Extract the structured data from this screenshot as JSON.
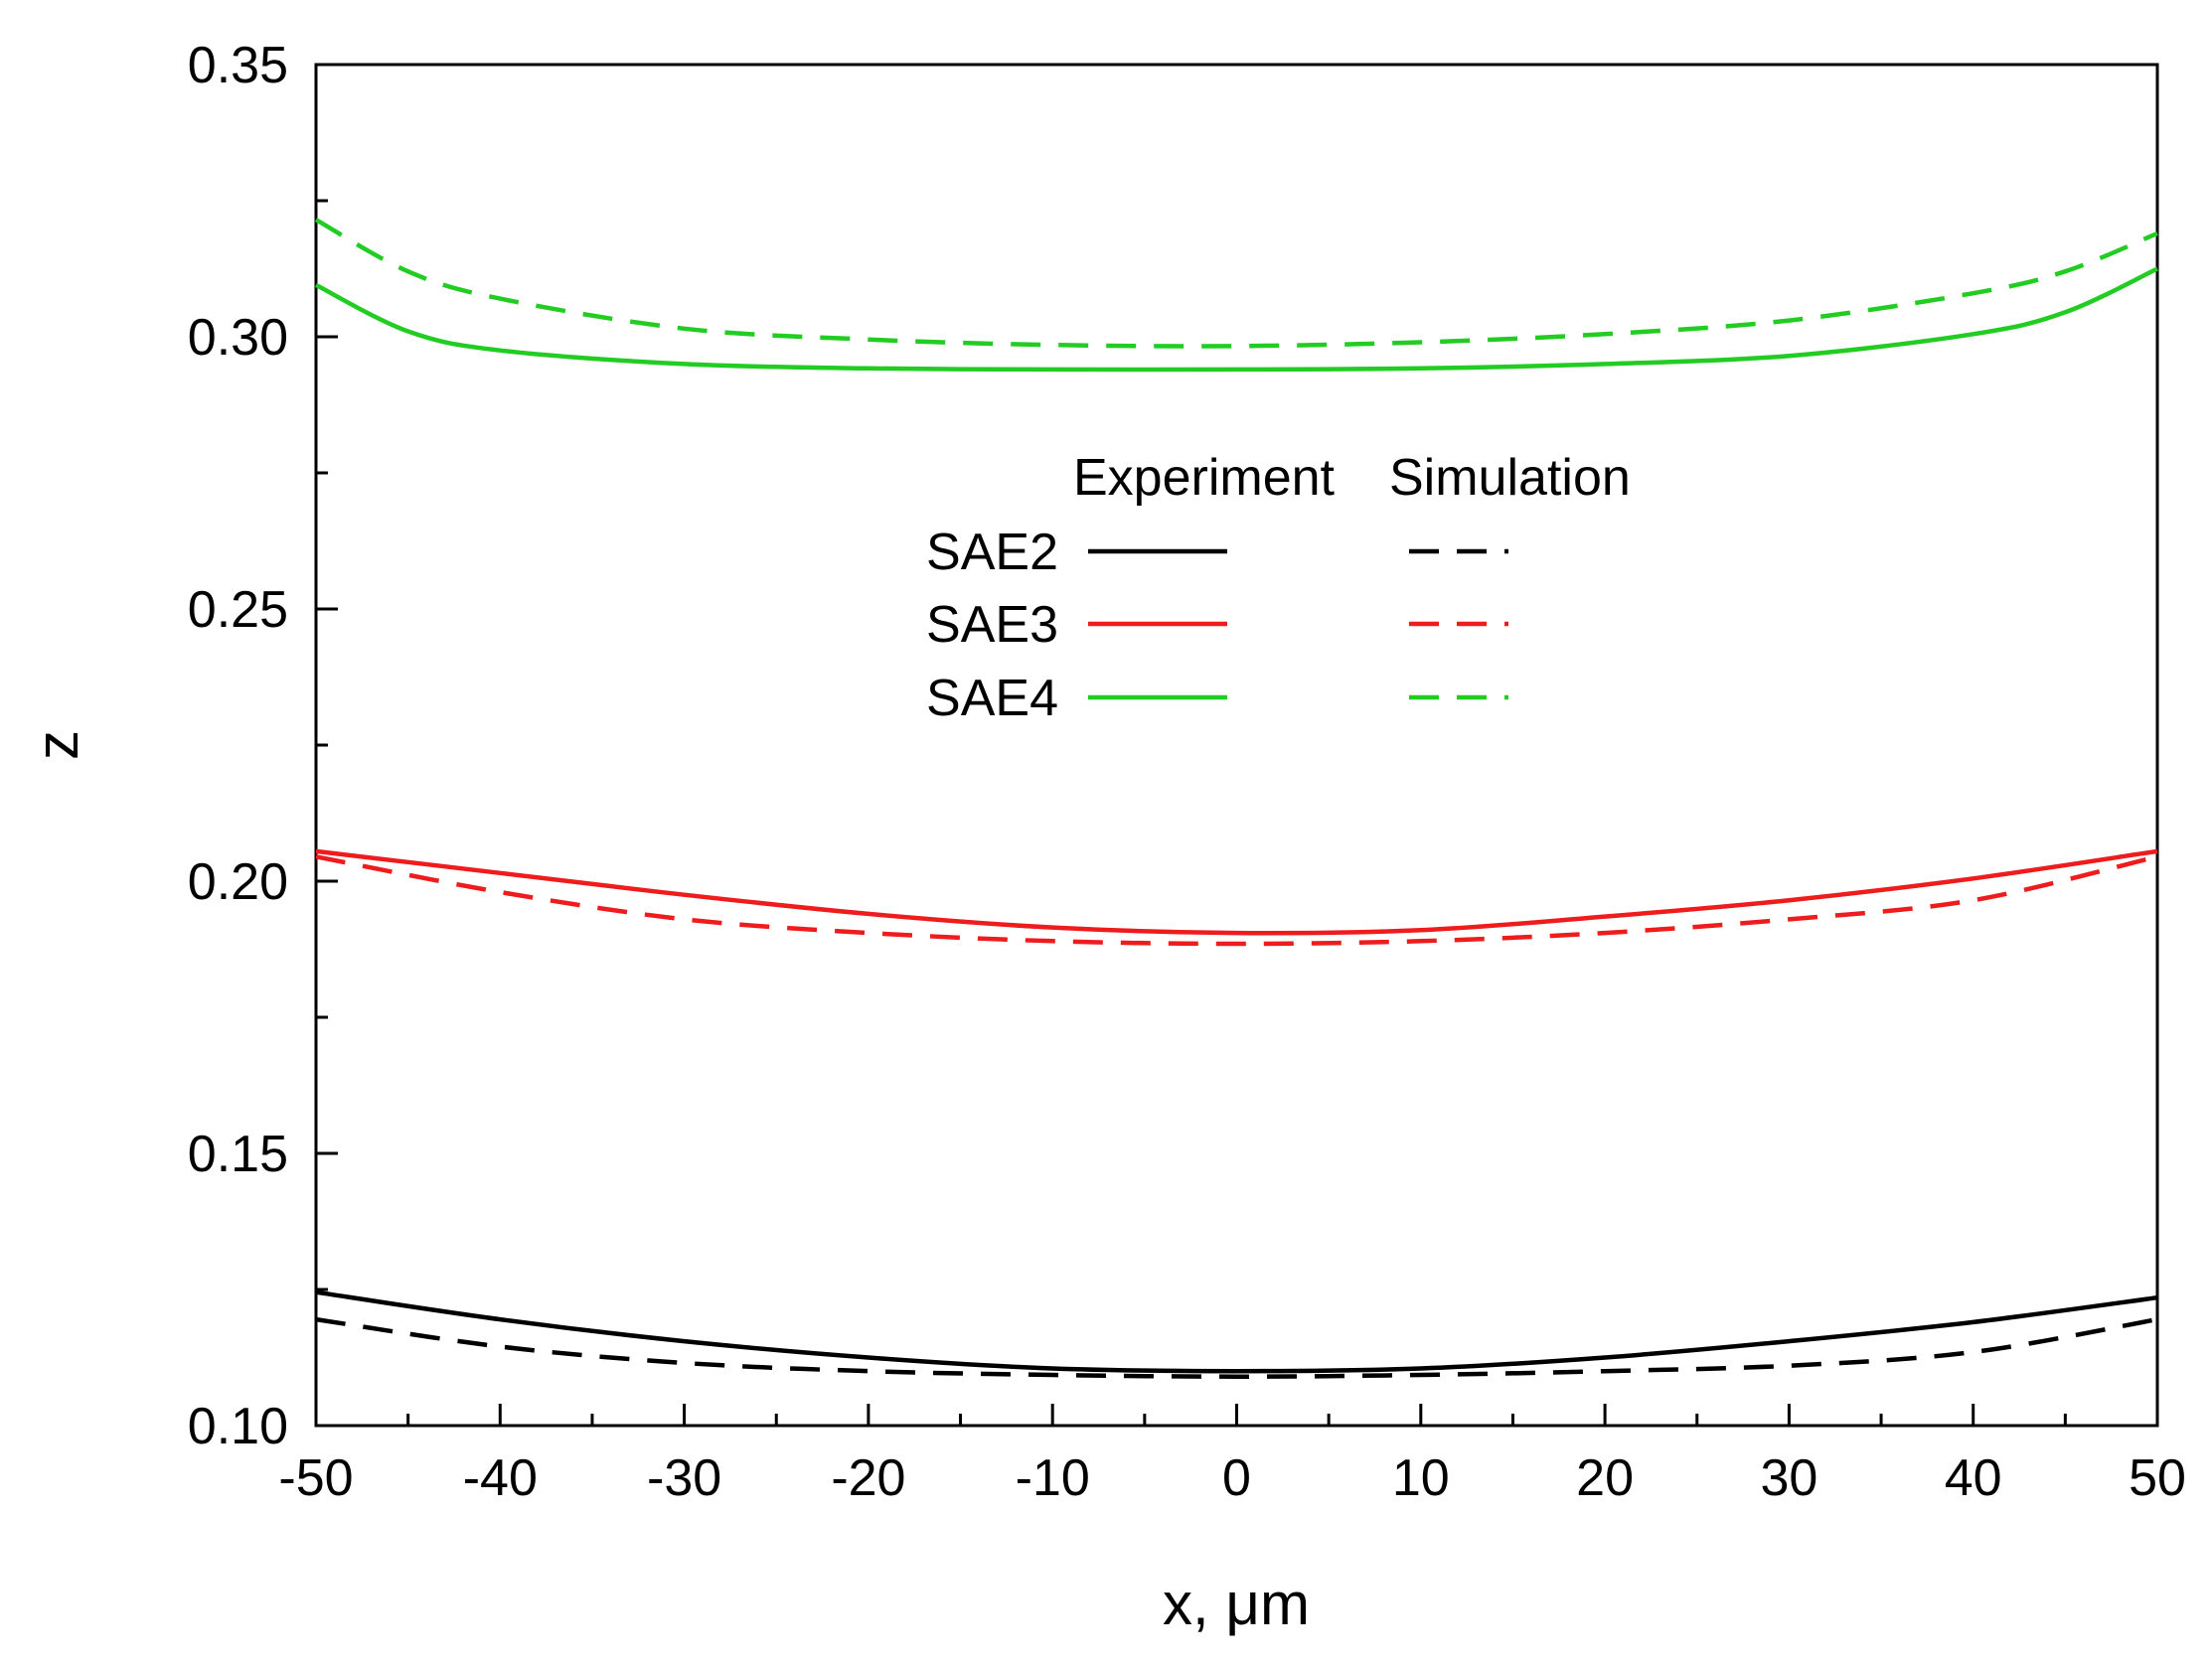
{
  "chart_data": {
    "type": "line",
    "title": "",
    "xlabel": "x, μm",
    "ylabel": "z",
    "xlim": [
      -50,
      50
    ],
    "ylim": [
      0.1,
      0.35
    ],
    "xticks": [
      -50,
      -40,
      -30,
      -20,
      -10,
      0,
      10,
      20,
      30,
      40,
      50
    ],
    "xtick_labels": [
      "-50",
      "-40",
      "-30",
      "-20",
      "-10",
      "0",
      "10",
      "20",
      "30",
      "40",
      "50"
    ],
    "yticks": [
      0.1,
      0.15,
      0.2,
      0.25,
      0.3,
      0.35
    ],
    "ytick_labels": [
      "0.10",
      "0.15",
      "0.20",
      "0.25",
      "0.30",
      "0.35"
    ],
    "grid": false,
    "legend": {
      "placement": "center",
      "column_headers": [
        "Experiment",
        "Simulation"
      ],
      "rows": [
        "SAE2",
        "SAE3",
        "SAE4"
      ]
    },
    "series": [
      {
        "name": "SAE2 Experiment",
        "legend_row": "SAE2",
        "kind": "Experiment",
        "color": "#000000",
        "dashed": false,
        "x": [
          -50,
          -40,
          -30,
          -20,
          -10,
          0,
          10,
          20,
          30,
          40,
          50
        ],
        "y": [
          0.1245,
          0.1195,
          0.1155,
          0.1125,
          0.1105,
          0.11,
          0.1105,
          0.1125,
          0.1155,
          0.119,
          0.1235
        ]
      },
      {
        "name": "SAE2 Simulation",
        "legend_row": "SAE2",
        "kind": "Simulation",
        "color": "#000000",
        "dashed": true,
        "x": [
          -50,
          -40,
          -30,
          -20,
          -10,
          0,
          10,
          20,
          30,
          40,
          50
        ],
        "y": [
          0.1195,
          0.1145,
          0.1115,
          0.11,
          0.1093,
          0.109,
          0.1093,
          0.11,
          0.111,
          0.1135,
          0.1195
        ]
      },
      {
        "name": "SAE3 Experiment",
        "legend_row": "SAE3",
        "kind": "Experiment",
        "color": "#ee1c1c",
        "dashed": false,
        "x": [
          -50,
          -40,
          -30,
          -20,
          -10,
          0,
          10,
          20,
          30,
          40,
          50
        ],
        "y": [
          0.2055,
          0.2015,
          0.1975,
          0.194,
          0.1915,
          0.1905,
          0.191,
          0.1935,
          0.1965,
          0.2005,
          0.2055
        ]
      },
      {
        "name": "SAE3 Simulation",
        "legend_row": "SAE3",
        "kind": "Simulation",
        "color": "#ee1c1c",
        "dashed": true,
        "x": [
          -50,
          -40,
          -30,
          -20,
          -10,
          0,
          10,
          20,
          30,
          40,
          50
        ],
        "y": [
          0.2045,
          0.198,
          0.193,
          0.1905,
          0.189,
          0.1885,
          0.189,
          0.1905,
          0.193,
          0.1965,
          0.2045
        ]
      },
      {
        "name": "SAE4 Experiment",
        "legend_row": "SAE4",
        "kind": "Experiment",
        "color": "#22cc22",
        "dashed": false,
        "x": [
          -50,
          -45,
          -40,
          -30,
          -20,
          -10,
          0,
          10,
          20,
          30,
          40,
          45,
          50
        ],
        "y": [
          0.3095,
          0.301,
          0.2975,
          0.295,
          0.2942,
          0.294,
          0.294,
          0.2942,
          0.295,
          0.2965,
          0.3005,
          0.3045,
          0.3125
        ]
      },
      {
        "name": "SAE4 Simulation",
        "legend_row": "SAE4",
        "kind": "Simulation",
        "color": "#22cc22",
        "dashed": true,
        "x": [
          -50,
          -45,
          -40,
          -30,
          -20,
          -10,
          0,
          10,
          20,
          30,
          40,
          45,
          50
        ],
        "y": [
          0.3215,
          0.312,
          0.307,
          0.3015,
          0.2995,
          0.2985,
          0.2983,
          0.299,
          0.3005,
          0.303,
          0.308,
          0.312,
          0.319
        ]
      }
    ]
  }
}
